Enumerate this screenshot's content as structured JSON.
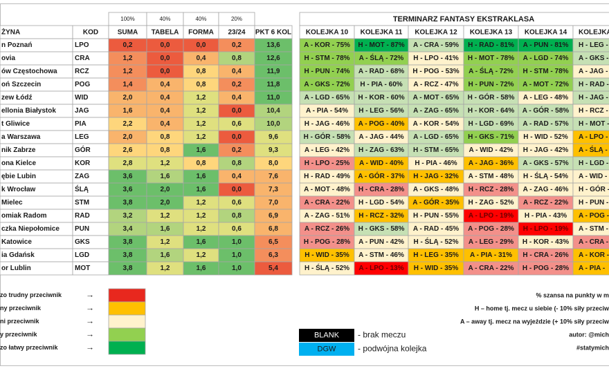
{
  "palette": [
    "#ff0000",
    "#f3908a",
    "#ffc000",
    "#fff2cc",
    "#c6e0b4",
    "#92d050",
    "#00b050",
    "#ec5b3e",
    "#f48e5c",
    "#f9b46c",
    "#fed67c",
    "#dfe07f",
    "#b2d47e",
    "#6cbf6a"
  ],
  "left_table": {
    "weights": [
      "100%",
      "40%",
      "40%",
      "20%"
    ],
    "columns": [
      "ŻYNA",
      "KOD",
      "SUMA",
      "TABELA",
      "FORMA",
      "23/24",
      "PKT 6 KOL"
    ],
    "rows": [
      {
        "team": "n Poznań",
        "code": "LPO",
        "values": [
          "0,2",
          "0,0",
          "0,0",
          "0,2",
          "13,6"
        ],
        "fills": [
          7,
          7,
          7,
          8,
          13
        ]
      },
      {
        "team": "ovia",
        "code": "CRA",
        "values": [
          "1,2",
          "0,0",
          "0,4",
          "0,8",
          "12,6"
        ],
        "fills": [
          8,
          7,
          9,
          12,
          13
        ]
      },
      {
        "team": "ów Częstochowa",
        "code": "RCZ",
        "values": [
          "1,2",
          "0,0",
          "0,8",
          "0,4",
          "11,9"
        ],
        "fills": [
          8,
          7,
          10,
          9,
          13
        ]
      },
      {
        "team": "oń Szczecin",
        "code": "POG",
        "values": [
          "1,4",
          "0,4",
          "0,8",
          "0,2",
          "11,8"
        ],
        "fills": [
          8,
          9,
          10,
          8,
          13
        ]
      },
      {
        "team": "zew Łódź",
        "code": "WID",
        "values": [
          "2,0",
          "0,4",
          "1,2",
          "0,4",
          "11,0"
        ],
        "fills": [
          9,
          9,
          11,
          9,
          13
        ]
      },
      {
        "team": "ellonia Białystok",
        "code": "JAG",
        "values": [
          "1,6",
          "0,4",
          "1,2",
          "0,0",
          "10,4"
        ],
        "fills": [
          9,
          9,
          11,
          7,
          12
        ]
      },
      {
        "team": "t Gliwice",
        "code": "PIA",
        "values": [
          "2,2",
          "0,4",
          "1,2",
          "0,6",
          "10,0"
        ],
        "fills": [
          10,
          9,
          11,
          11,
          12
        ]
      },
      {
        "team": "a Warszawa",
        "code": "LEG",
        "values": [
          "2,0",
          "0,8",
          "1,2",
          "0,0",
          "9,6"
        ],
        "fills": [
          9,
          10,
          11,
          7,
          11
        ]
      },
      {
        "team": "nik Zabrze",
        "code": "GÓR",
        "values": [
          "2,6",
          "0,8",
          "1,6",
          "0,2",
          "9,3"
        ],
        "fills": [
          10,
          10,
          13,
          8,
          11
        ]
      },
      {
        "team": "ona Kielce",
        "code": "KOR",
        "values": [
          "2,8",
          "1,2",
          "0,8",
          "0,8",
          "8,0"
        ],
        "fills": [
          11,
          11,
          10,
          12,
          10
        ]
      },
      {
        "team": "ębie Lubin",
        "code": "ZAG",
        "values": [
          "3,6",
          "1,6",
          "1,6",
          "0,4",
          "7,6"
        ],
        "fills": [
          13,
          12,
          13,
          9,
          9
        ]
      },
      {
        "team": "k Wrocław",
        "code": "ŚLĄ",
        "values": [
          "3,6",
          "2,0",
          "1,6",
          "0,0",
          "7,3"
        ],
        "fills": [
          13,
          13,
          13,
          7,
          9
        ]
      },
      {
        "team": "Mielec",
        "code": "STM",
        "values": [
          "3,8",
          "2,0",
          "1,2",
          "0,6",
          "7,0"
        ],
        "fills": [
          13,
          13,
          11,
          11,
          9
        ]
      },
      {
        "team": "omiak Radom",
        "code": "RAD",
        "values": [
          "3,2",
          "1,2",
          "1,2",
          "0,8",
          "6,9"
        ],
        "fills": [
          12,
          11,
          11,
          12,
          9
        ]
      },
      {
        "team": "czka Niepołomice",
        "code": "PUN",
        "values": [
          "3,4",
          "1,6",
          "1,2",
          "0,6",
          "6,8"
        ],
        "fills": [
          12,
          12,
          11,
          11,
          9
        ]
      },
      {
        "team": "Katowice",
        "code": "GKS",
        "values": [
          "3,8",
          "1,2",
          "1,6",
          "1,0",
          "6,5"
        ],
        "fills": [
          13,
          11,
          13,
          13,
          8
        ]
      },
      {
        "team": "ia Gdańsk",
        "code": "LGD",
        "values": [
          "3,8",
          "1,6",
          "1,2",
          "1,0",
          "6,3"
        ],
        "fills": [
          13,
          12,
          11,
          13,
          8
        ]
      },
      {
        "team": "or Lublin",
        "code": "MOT",
        "values": [
          "3,8",
          "1,2",
          "1,6",
          "1,0",
          "5,4"
        ],
        "fills": [
          13,
          11,
          13,
          13,
          7
        ]
      }
    ]
  },
  "fixtures": {
    "title": "TERMINARZ FANTASY EKSTRAKLASA",
    "columns": [
      "KOLEJKA 10",
      "KOLEJKA 11",
      "KOLEJKA 12",
      "KOLEJKA 13",
      "KOLEJKA 14",
      "KOLEJKA"
    ],
    "rows": [
      {
        "cells": [
          "A - KOR - 75%",
          "H - MOT - 87%",
          "A - CRA - 59%",
          "H - RAD - 81%",
          "A - PUN - 81%",
          "H - LEG - 6"
        ],
        "fills": [
          5,
          6,
          4,
          6,
          6,
          4
        ]
      },
      {
        "cells": [
          "H - STM - 78%",
          "A - ŚLĄ - 72%",
          "H - LPO - 41%",
          "H - MOT - 78%",
          "A - LGD - 74%",
          "A - GKS - 5"
        ],
        "fills": [
          5,
          5,
          3,
          5,
          5,
          4
        ]
      },
      {
        "cells": [
          "H - PUN - 74%",
          "A - RAD - 68%",
          "H - POG - 53%",
          "A - ŚLĄ - 72%",
          "H - STM - 78%",
          "A - JAG - 5"
        ],
        "fills": [
          5,
          4,
          3,
          5,
          5,
          3
        ]
      },
      {
        "cells": [
          "A - GKS - 72%",
          "H - PIA - 60%",
          "A - RCZ - 47%",
          "H - PUN - 72%",
          "A - MOT - 72%",
          "H - RAD -"
        ],
        "fills": [
          5,
          4,
          3,
          5,
          5,
          4
        ]
      },
      {
        "cells": [
          "A - LGD - 65%",
          "H - KOR - 60%",
          "A - MOT - 65%",
          "H - GÓR - 58%",
          "A - LEG - 48%",
          "H - JAG -"
        ],
        "fills": [
          4,
          4,
          4,
          4,
          3,
          4
        ]
      },
      {
        "cells": [
          "A - PIA - 54%",
          "H - LEG - 56%",
          "A - ZAG - 65%",
          "H - KOR - 64%",
          "A - GÓR - 58%",
          "H - RCZ - 4"
        ],
        "fills": [
          3,
          4,
          4,
          4,
          4,
          3
        ]
      },
      {
        "cells": [
          "H - JAG - 46%",
          "A - POG - 40%",
          "A - KOR - 54%",
          "H - LGD - 69%",
          "A - RAD - 57%",
          "H - MOT -"
        ],
        "fills": [
          3,
          2,
          3,
          4,
          4,
          4
        ]
      },
      {
        "cells": [
          "H - GÓR - 58%",
          "A - JAG - 44%",
          "A - LGD - 65%",
          "H - GKS - 71%",
          "H - WID - 52%",
          "A - LPO -"
        ],
        "fills": [
          4,
          3,
          4,
          5,
          3,
          2
        ]
      },
      {
        "cells": [
          "A - LEG - 42%",
          "H - ZAG - 63%",
          "H - STM - 65%",
          "A - WID - 42%",
          "H - JAG - 42%",
          "A - ŚLĄ -"
        ],
        "fills": [
          3,
          4,
          4,
          3,
          3,
          2
        ]
      },
      {
        "cells": [
          "H - LPO - 25%",
          "A - WID - 40%",
          "H - PIA - 46%",
          "A - JAG - 36%",
          "A - GKS - 57%",
          "H - LGD -"
        ],
        "fills": [
          1,
          2,
          3,
          2,
          4,
          4
        ]
      },
      {
        "cells": [
          "H - RAD - 49%",
          "A - GÓR - 37%",
          "H - JAG - 32%",
          "A - STM - 48%",
          "H - ŚLĄ - 54%",
          "A - WID -"
        ],
        "fills": [
          3,
          2,
          2,
          3,
          3,
          3
        ]
      },
      {
        "cells": [
          "A - MOT - 48%",
          "H - CRA - 28%",
          "A - GKS - 48%",
          "H - RCZ - 28%",
          "A - ZAG - 46%",
          "H - GÓR -"
        ],
        "fills": [
          3,
          1,
          3,
          1,
          3,
          3
        ]
      },
      {
        "cells": [
          "A - CRA - 22%",
          "H - LGD - 54%",
          "A - GÓR - 35%",
          "H - ZAG - 52%",
          "A - RCZ - 22%",
          "H - PUN -"
        ],
        "fills": [
          1,
          3,
          2,
          3,
          1,
          3
        ]
      },
      {
        "cells": [
          "A - ZAG - 51%",
          "H - RCZ - 32%",
          "H - PUN - 55%",
          "A - LPO - 19%",
          "H - PIA - 43%",
          "A - POG -"
        ],
        "fills": [
          3,
          2,
          3,
          0,
          3,
          2
        ]
      },
      {
        "cells": [
          "A - RCZ - 26%",
          "H - GKS - 58%",
          "A - RAD - 45%",
          "A - POG - 28%",
          "H - LPO - 19%",
          "A - STM -"
        ],
        "fills": [
          1,
          4,
          3,
          1,
          0,
          3
        ]
      },
      {
        "cells": [
          "H - POG - 28%",
          "A - PUN - 42%",
          "H - ŚLĄ - 52%",
          "A - LEG - 29%",
          "H - KOR - 43%",
          "A - CRA -"
        ],
        "fills": [
          1,
          3,
          3,
          1,
          3,
          1
        ]
      },
      {
        "cells": [
          "H - WID - 35%",
          "A - STM - 46%",
          "H - LEG - 35%",
          "A - PIA - 31%",
          "H - CRA - 26%",
          "A - KOR -"
        ],
        "fills": [
          2,
          3,
          2,
          2,
          1,
          2
        ]
      },
      {
        "cells": [
          "H - ŚLĄ - 52%",
          "A - LPO - 13%",
          "H - WID - 35%",
          "A - CRA - 22%",
          "H - POG - 28%",
          "A - PIA -"
        ],
        "fills": [
          3,
          0,
          2,
          1,
          1,
          2
        ]
      }
    ]
  },
  "legend_arrow": "→",
  "legend": [
    {
      "label": "zo trudny przeciwnik",
      "color": "#e8281e"
    },
    {
      "label": "ny przeciwnik",
      "color": "#ffc000"
    },
    {
      "label": "ni przeciwnik",
      "color": "#fff2cc"
    },
    {
      "label": "y przeciwnik",
      "color": "#92d050"
    },
    {
      "label": "zo łatwy przeciwnik",
      "color": "#00b050"
    }
  ],
  "key": [
    {
      "box": "BLANK",
      "text": "- brak meczu",
      "color": "#000000"
    },
    {
      "box": "DGW",
      "text": "- podwójna kolejka",
      "color": "#00b0f0"
    }
  ],
  "notes": [
    "% szansa na punkty w m",
    "H – home tj. mecz u siebie (- 10% siły przeciw",
    "A – away tj. mecz na wyjeździe (+ 10% siły przeciw",
    "autor: @mich",
    "#statymich"
  ]
}
